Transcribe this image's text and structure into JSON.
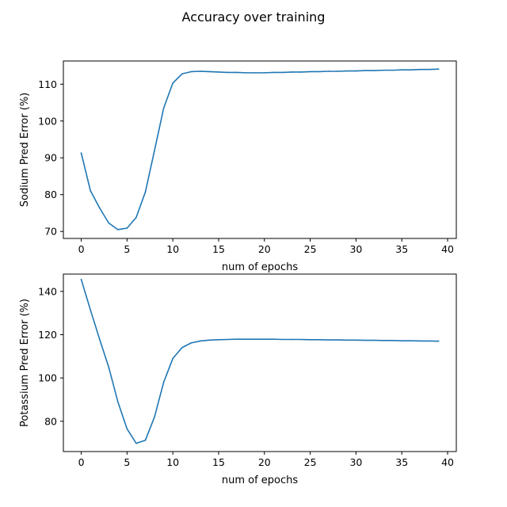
{
  "figure": {
    "suptitle": "Accuracy over training"
  },
  "chart_data": [
    {
      "type": "line",
      "xlabel": "num of epochs",
      "ylabel": "Sodium Pred Error (%)",
      "xlim": [
        -1.95,
        40.95
      ],
      "ylim": [
        68.1,
        116.3
      ],
      "xticks": [
        0,
        5,
        10,
        15,
        20,
        25,
        30,
        35,
        40
      ],
      "yticks": [
        70,
        80,
        90,
        100,
        110
      ],
      "grid": false,
      "color": "#1f77b4",
      "series": [
        {
          "x": [
            0,
            1,
            2,
            3,
            4,
            5,
            6,
            7,
            8,
            9,
            10,
            11,
            12,
            13,
            14,
            15,
            16,
            17,
            18,
            19,
            20,
            21,
            22,
            23,
            24,
            25,
            26,
            27,
            28,
            29,
            30,
            31,
            32,
            33,
            34,
            35,
            36,
            37,
            38,
            39
          ],
          "values": [
            91.3,
            81.1,
            76.4,
            72.3,
            70.5,
            70.9,
            73.8,
            80.7,
            92.0,
            103.5,
            110.3,
            112.8,
            113.4,
            113.5,
            113.4,
            113.3,
            113.2,
            113.2,
            113.1,
            113.1,
            113.1,
            113.2,
            113.2,
            113.3,
            113.3,
            113.4,
            113.4,
            113.5,
            113.5,
            113.6,
            113.6,
            113.7,
            113.7,
            113.8,
            113.8,
            113.9,
            113.9,
            114.0,
            114.0,
            114.1
          ]
        }
      ]
    },
    {
      "type": "line",
      "xlabel": "num of epochs",
      "ylabel": "Potassium Pred Error (%)",
      "xlim": [
        -1.95,
        40.95
      ],
      "ylim": [
        66.0,
        148.0
      ],
      "xticks": [
        0,
        5,
        10,
        15,
        20,
        25,
        30,
        35,
        40
      ],
      "yticks": [
        80,
        100,
        120,
        140
      ],
      "grid": false,
      "color": "#1f77b4",
      "series": [
        {
          "x": [
            0,
            1,
            2,
            3,
            4,
            5,
            6,
            7,
            8,
            9,
            10,
            11,
            12,
            13,
            14,
            15,
            16,
            17,
            18,
            19,
            20,
            21,
            22,
            23,
            24,
            25,
            26,
            27,
            28,
            29,
            30,
            31,
            32,
            33,
            34,
            35,
            36,
            37,
            38,
            39
          ],
          "values": [
            145.5,
            131.5,
            118.0,
            105.0,
            89.0,
            76.5,
            69.8,
            71.2,
            82.0,
            98.0,
            109.0,
            114.0,
            116.2,
            117.1,
            117.5,
            117.7,
            117.8,
            117.9,
            117.9,
            117.9,
            117.9,
            117.9,
            117.8,
            117.8,
            117.8,
            117.7,
            117.7,
            117.6,
            117.6,
            117.5,
            117.5,
            117.4,
            117.4,
            117.3,
            117.3,
            117.2,
            117.2,
            117.1,
            117.1,
            117.0
          ]
        }
      ]
    }
  ]
}
